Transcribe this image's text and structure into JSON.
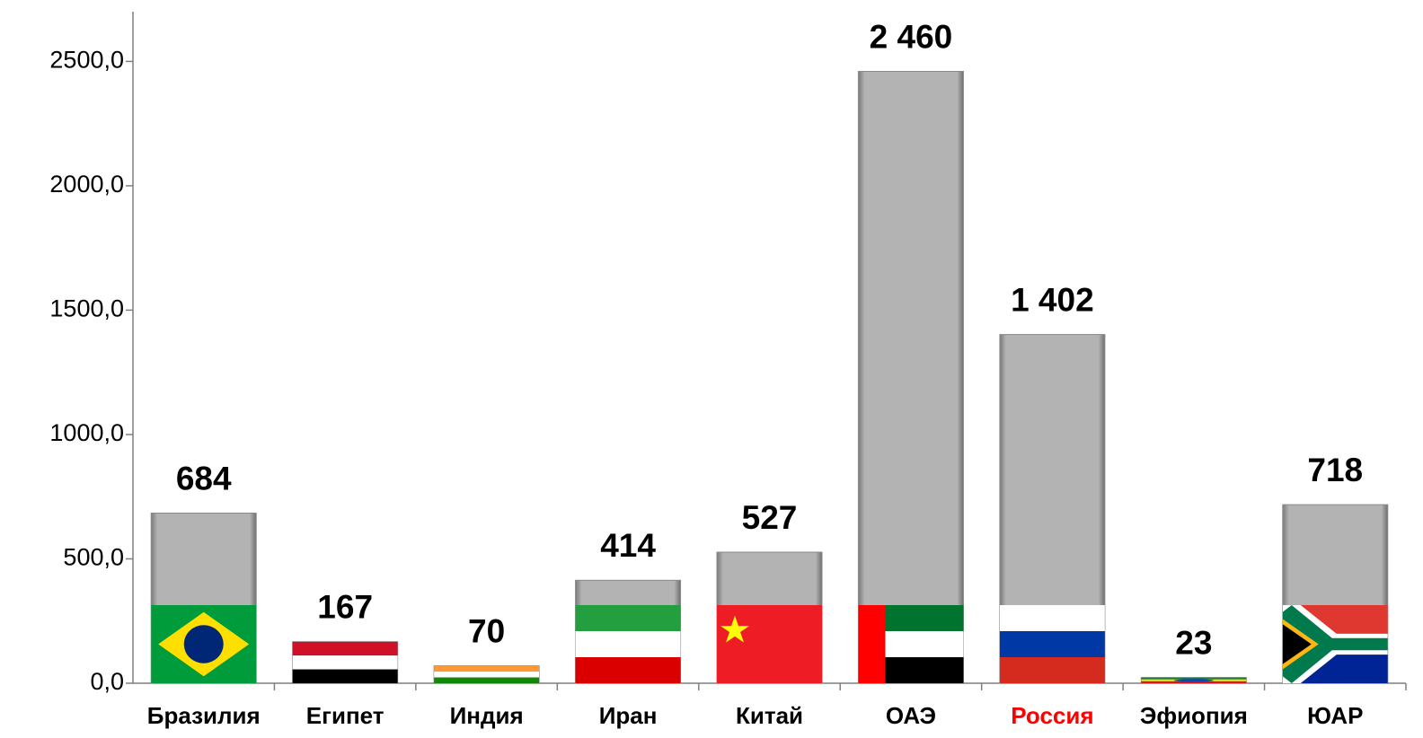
{
  "chart_data": {
    "type": "bar",
    "categories": [
      "Бразилия",
      "Египет",
      "Индия",
      "Иран",
      "Китай",
      "ОАЭ",
      "Россия",
      "Эфиопия",
      "ЮАР"
    ],
    "values": [
      684,
      167,
      70,
      414,
      527,
      2460,
      1402,
      23,
      718
    ],
    "value_labels": [
      "684",
      "167",
      "70",
      "414",
      "527",
      "2 460",
      "1 402",
      "23",
      "718"
    ],
    "color": "#b3b3b3",
    "label_colors": [
      "#000000",
      "#000000",
      "#000000",
      "#000000",
      "#000000",
      "#000000",
      "#ff0000",
      "#000000",
      "#000000"
    ],
    "ylim": [
      0,
      2700
    ],
    "yticks": [
      {
        "value": 0,
        "label": "0,0"
      },
      {
        "value": 500,
        "label": "500,0"
      },
      {
        "value": 1000,
        "label": "1000,0"
      },
      {
        "value": 1500,
        "label": "1500,0"
      },
      {
        "value": 2000,
        "label": "2000,0"
      },
      {
        "value": 2500,
        "label": "2500,0"
      }
    ],
    "grid": false
  }
}
